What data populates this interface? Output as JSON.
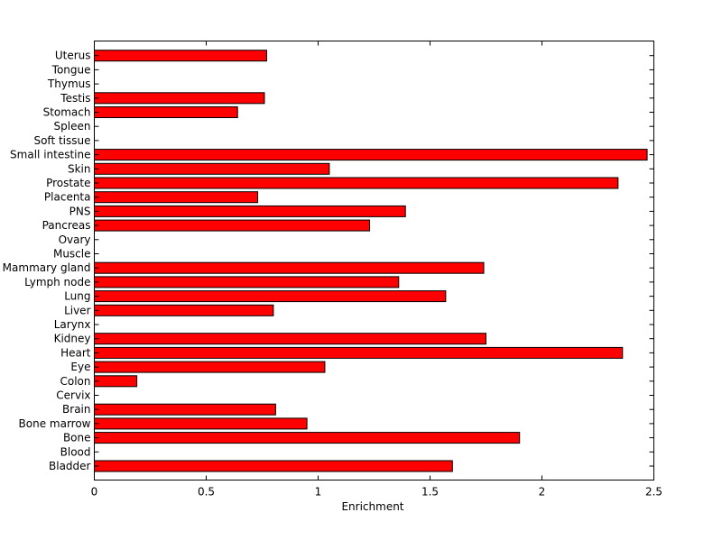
{
  "chart_data": {
    "type": "bar",
    "orientation": "horizontal",
    "title": "",
    "xlabel": "Enrichment",
    "ylabel": "",
    "xlim": [
      0,
      2.5
    ],
    "xticks": [
      "0",
      "0.5",
      "1",
      "1.5",
      "2",
      "2.5"
    ],
    "grid": false,
    "bar_color": "#ff0000",
    "categories": [
      "Bladder",
      "Blood",
      "Bone",
      "Bone marrow",
      "Brain",
      "Cervix",
      "Colon",
      "Eye",
      "Heart",
      "Kidney",
      "Larynx",
      "Liver",
      "Lung",
      "Lymph node",
      "Mammary gland",
      "Muscle",
      "Ovary",
      "Pancreas",
      "PNS",
      "Placenta",
      "Prostate",
      "Skin",
      "Small intestine",
      "Soft tissue",
      "Spleen",
      "Stomach",
      "Testis",
      "Thymus",
      "Tongue",
      "Uterus"
    ],
    "values": [
      1.6,
      0,
      1.9,
      0.95,
      0.81,
      0,
      0.19,
      1.03,
      2.36,
      1.75,
      0,
      0.8,
      1.57,
      1.36,
      1.74,
      0,
      0,
      1.23,
      1.39,
      0.73,
      2.34,
      1.05,
      2.47,
      0,
      0,
      0.64,
      0.76,
      0,
      0,
      0.77
    ]
  }
}
